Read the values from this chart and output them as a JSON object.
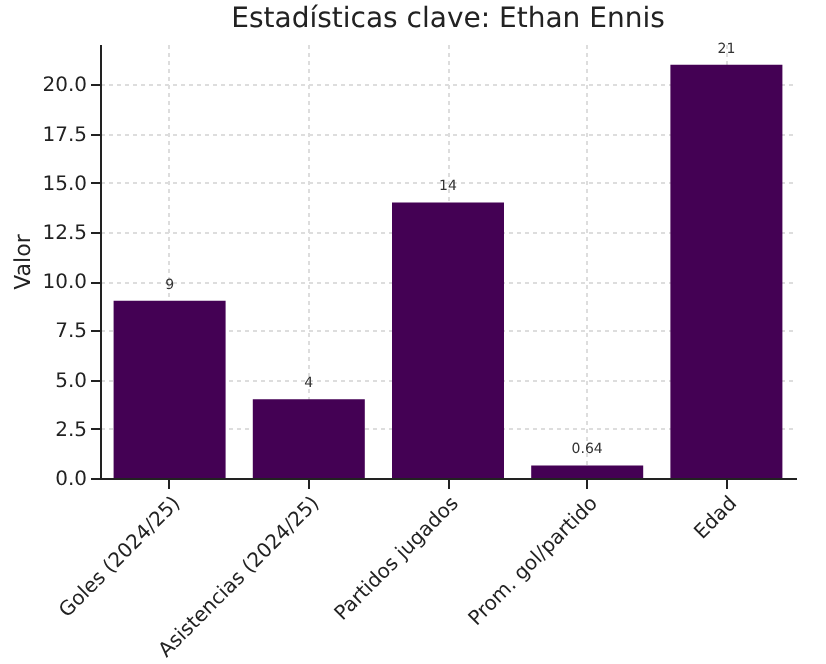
{
  "chart_data": {
    "type": "bar",
    "title": "Estadísticas clave: Ethan Ennis",
    "ylabel": "Valor",
    "categories": [
      "Goles (2024/25)",
      "Asistencias (2024/25)",
      "Partidos jugados",
      "Prom. gol/partido",
      "Edad"
    ],
    "values": [
      9,
      4,
      14,
      0.64,
      21
    ],
    "color": "#440154",
    "data_labels": true,
    "grid": true,
    "ylim": [
      0,
      22.05
    ],
    "yticks": [
      {
        "value": 0,
        "label": "0.0"
      },
      {
        "value": 2.5,
        "label": "2.5"
      },
      {
        "value": 5,
        "label": "5.0"
      },
      {
        "value": 7.5,
        "label": "7.5"
      },
      {
        "value": 10,
        "label": "10.0"
      },
      {
        "value": 12.5,
        "label": "12.5"
      },
      {
        "value": 15,
        "label": "15.0"
      },
      {
        "value": 17.5,
        "label": "17.5"
      },
      {
        "value": 20,
        "label": "20.0"
      }
    ]
  }
}
